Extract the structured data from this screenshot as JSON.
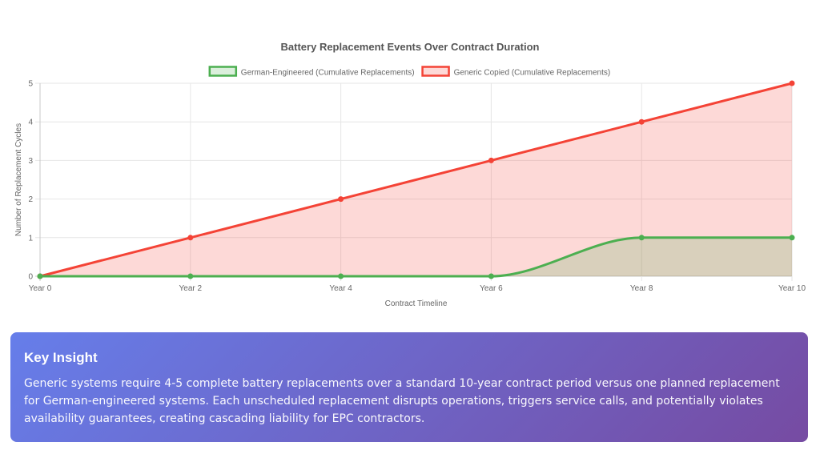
{
  "chart_data": {
    "type": "line",
    "title": "Battery Replacement Events Over Contract Duration",
    "xlabel": "Contract Timeline",
    "ylabel": "Number of Replacement Cycles",
    "categories": [
      "Year 0",
      "Year 2",
      "Year 4",
      "Year 6",
      "Year 8",
      "Year 10"
    ],
    "ylim": [
      0,
      5
    ],
    "yticks": [
      "0",
      "1",
      "2",
      "3",
      "4",
      "5"
    ],
    "series": [
      {
        "name": "German-Engineered (Cumulative Replacements)",
        "values": [
          0,
          0,
          0,
          0,
          1,
          1
        ],
        "color": "#4caf50",
        "fill": "rgba(76,175,80,0.2)",
        "smooth": true
      },
      {
        "name": "Generic Copied (Cumulative Replacements)",
        "values": [
          0,
          1,
          2,
          3,
          4,
          5
        ],
        "color": "#f44336",
        "fill": "rgba(244,67,54,0.2)",
        "smooth": false
      }
    ],
    "grid": true,
    "legend": "top-center",
    "filled_area": true
  },
  "insight": {
    "title": "Key Insight",
    "text": "Generic systems require 4-5 complete battery replacements over a standard 10-year contract period versus one planned replacement for German-engineered systems. Each unscheduled replacement disrupts operations, triggers service calls, and potentially violates availability guarantees, creating cascading liability for EPC contractors."
  }
}
